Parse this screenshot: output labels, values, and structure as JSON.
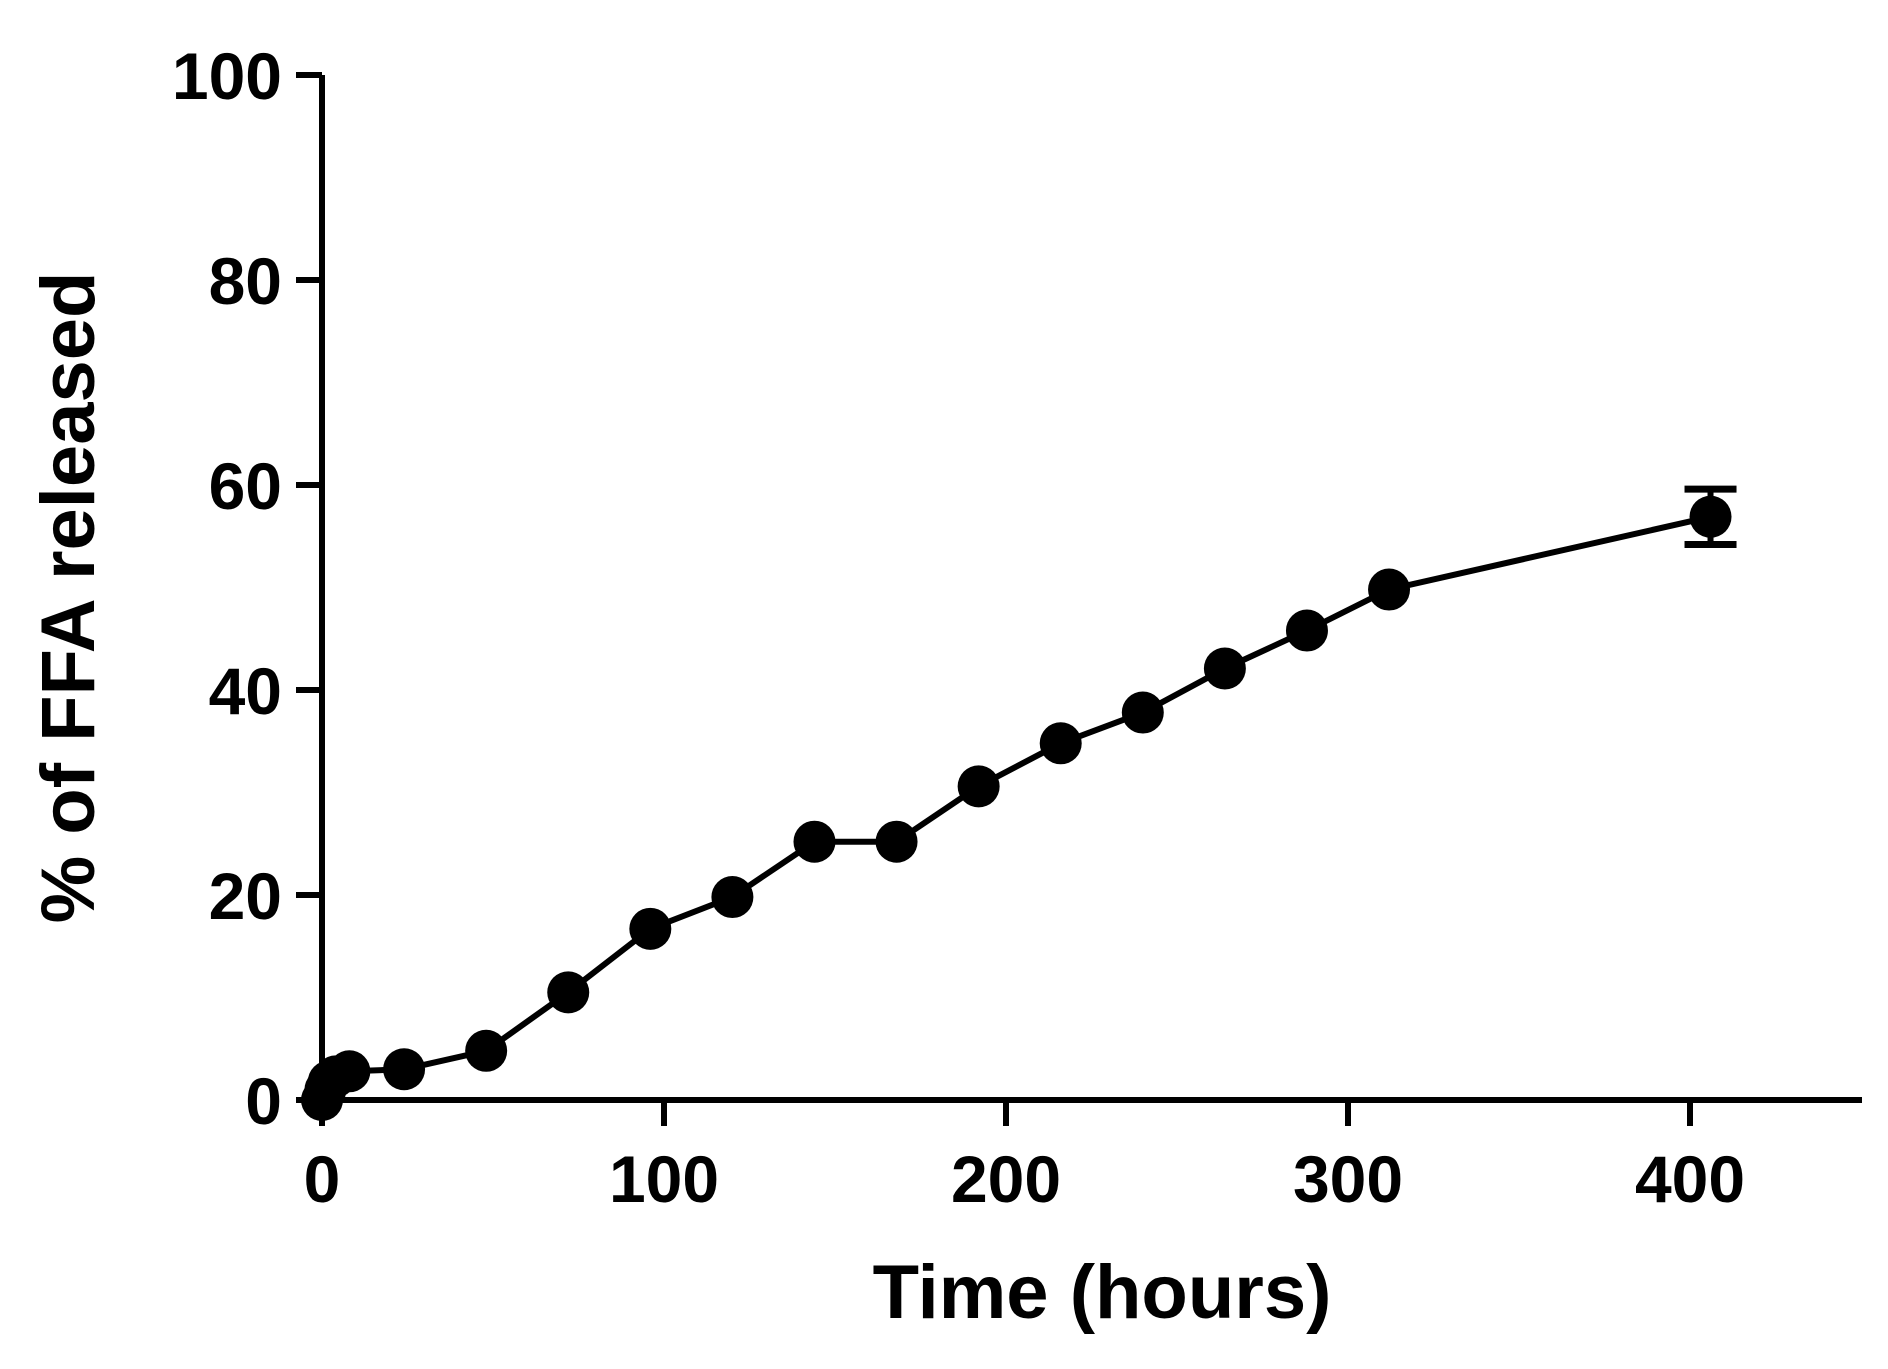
{
  "chart_data": {
    "type": "line",
    "title": "",
    "xlabel": "Time (hours)",
    "ylabel": "% of FFA released",
    "xlim": [
      0,
      450
    ],
    "ylim": [
      0,
      100
    ],
    "xticks": [
      0,
      100,
      200,
      300,
      400
    ],
    "yticks": [
      0,
      20,
      40,
      60,
      80,
      100
    ],
    "grid": false,
    "legend": "none",
    "colors": {
      "line": "#000000",
      "marker": "#000000"
    },
    "series": [
      {
        "x": [
          0,
          1,
          2,
          4,
          8,
          24,
          48,
          72,
          96,
          120,
          144,
          168,
          192,
          216,
          240,
          264,
          288,
          312,
          406
        ],
        "y": [
          0,
          1.0,
          1.8,
          2.3,
          2.8,
          3.0,
          4.8,
          10.5,
          16.7,
          19.8,
          25.2,
          25.2,
          30.6,
          34.8,
          37.8,
          42.1,
          45.8,
          49.8,
          56.9
        ],
        "error": [
          0,
          0,
          0,
          0,
          0,
          0,
          0,
          0,
          0,
          0,
          0,
          0,
          0,
          0,
          0,
          0,
          0,
          0,
          2.7
        ]
      }
    ]
  }
}
